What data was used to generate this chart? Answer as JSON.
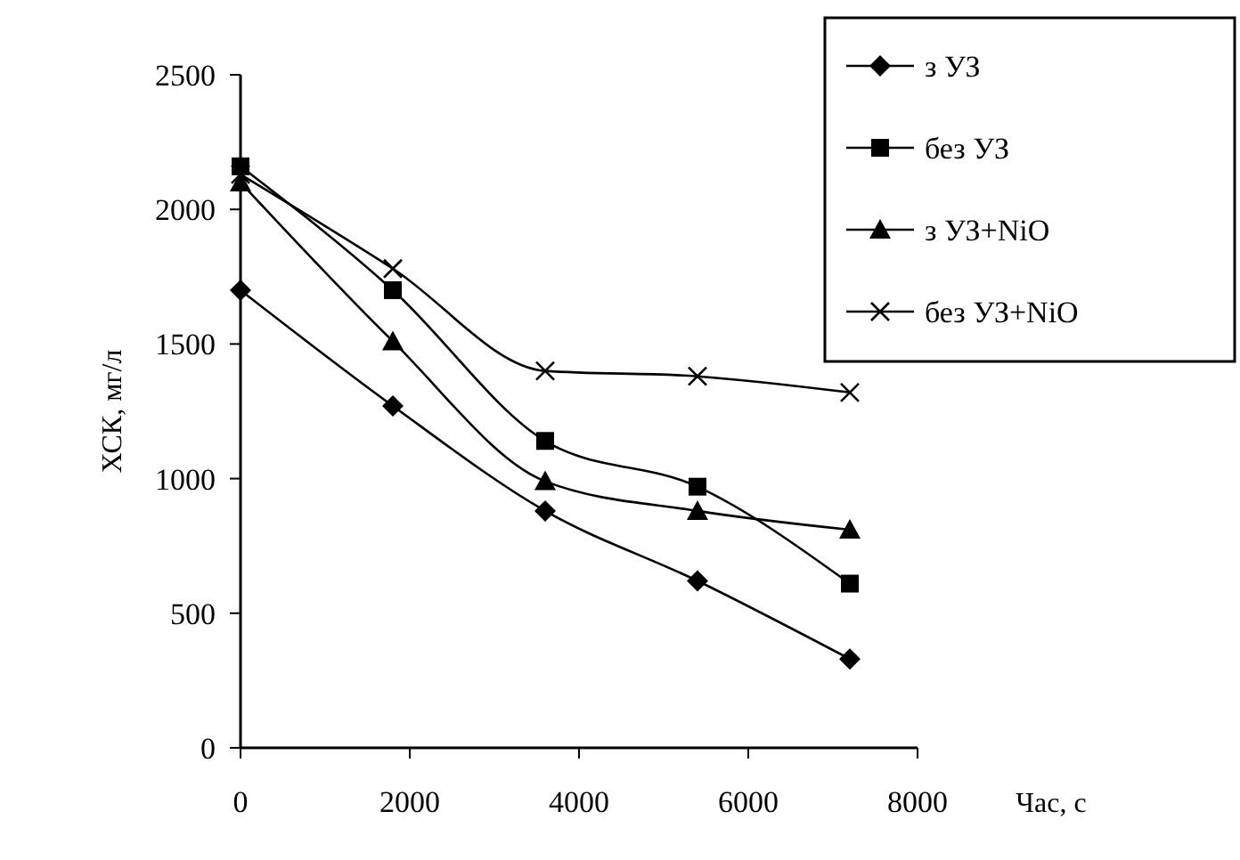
{
  "chart_data": {
    "type": "line",
    "xlabel": "Час, с",
    "ylabel": "ХСК, мг/л",
    "x": [
      0,
      1800,
      3600,
      5400,
      7200
    ],
    "xlim": [
      0,
      8000
    ],
    "xticks": [
      0,
      2000,
      4000,
      6000,
      8000
    ],
    "ylim": [
      0,
      2500
    ],
    "yticks": [
      0,
      500,
      1000,
      1500,
      2000,
      2500
    ],
    "grid": false,
    "legend": "top right",
    "line_style": "solid",
    "series": [
      {
        "name": "з УЗ",
        "color": "#000000",
        "marker": "diamond",
        "values": [
          1700,
          1270,
          880,
          620,
          330
        ]
      },
      {
        "name": "без УЗ",
        "color": "#000000",
        "marker": "square",
        "values": [
          2160,
          1700,
          1140,
          970,
          610
        ]
      },
      {
        "name": "з УЗ+NiO",
        "color": "#000000",
        "marker": "triangle",
        "values": [
          2100,
          1510,
          990,
          880,
          810
        ]
      },
      {
        "name": "без УЗ+NiO",
        "color": "#000000",
        "marker": "cross",
        "values": [
          2130,
          1780,
          1400,
          1380,
          1320
        ]
      }
    ]
  }
}
